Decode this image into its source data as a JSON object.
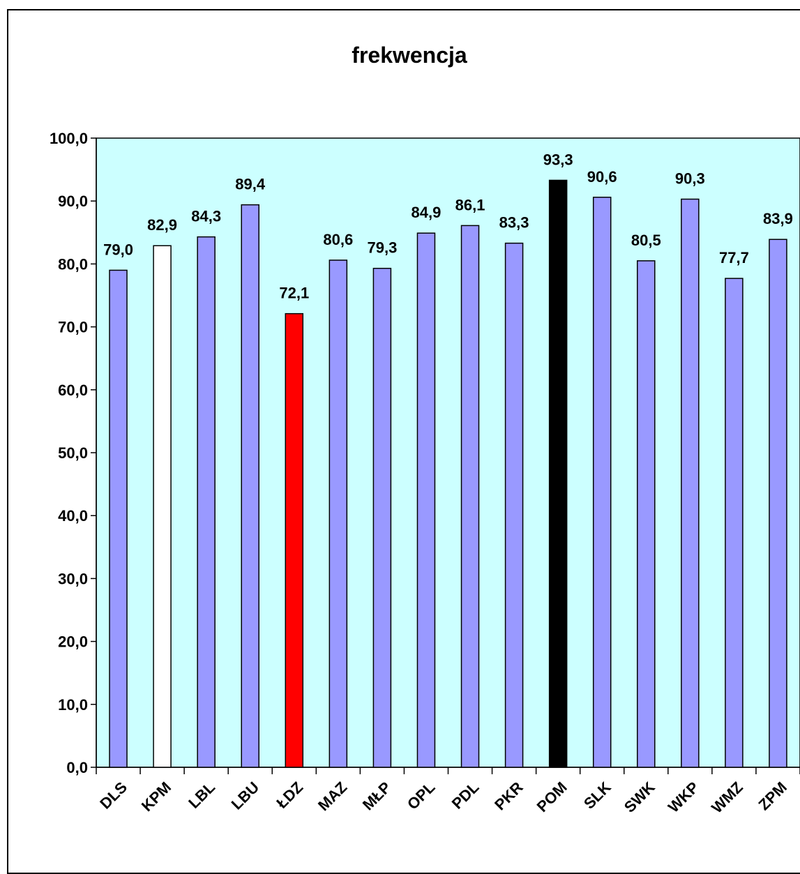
{
  "chart_data": {
    "type": "bar",
    "title": "frekwencja",
    "xlabel": "",
    "ylabel": "",
    "categories": [
      "DLS",
      "KPM",
      "LBL",
      "LBU",
      "ŁDZ",
      "MAZ",
      "MŁP",
      "OPL",
      "PDL",
      "PKR",
      "POM",
      "SLK",
      "SWK",
      "WKP",
      "WMZ",
      "ZPM"
    ],
    "values": [
      79.0,
      82.9,
      84.3,
      89.4,
      72.1,
      80.6,
      79.3,
      84.9,
      86.1,
      83.3,
      93.3,
      90.6,
      80.5,
      90.3,
      77.7,
      83.9
    ],
    "value_labels": [
      "79,0",
      "82,9",
      "84,3",
      "89,4",
      "72,1",
      "80,6",
      "79,3",
      "84,9",
      "86,1",
      "83,3",
      "93,3",
      "90,6",
      "80,5",
      "90,3",
      "77,7",
      "83,9"
    ],
    "ylim": [
      0,
      100
    ],
    "yticks": [
      "0,0",
      "10,0",
      "20,0",
      "30,0",
      "40,0",
      "50,0",
      "60,0",
      "70,0",
      "80,0",
      "90,0",
      "100,0"
    ],
    "grid": false,
    "legend": "none",
    "colors": {
      "plot_background": "#ccffff",
      "default_bar": "#9999ff",
      "highlight": {
        "KPM": "#ffffff",
        "ŁDZ": "#ff0000",
        "POM": "#000000"
      }
    }
  }
}
